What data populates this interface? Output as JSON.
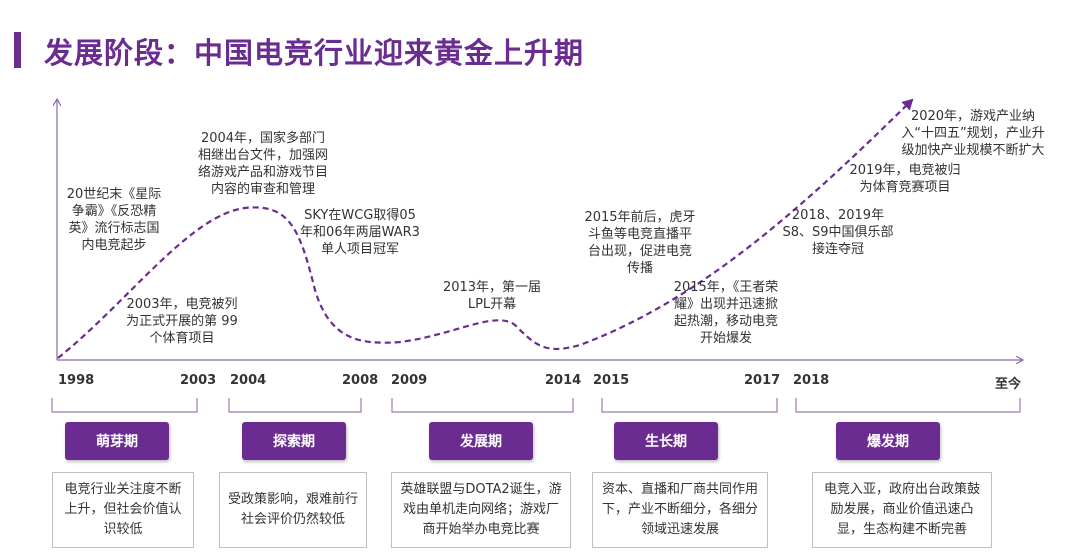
{
  "title": "发展阶段：中国电竞行业迎来黄金上升期",
  "colors": {
    "accent": "#6a2c91",
    "axis": "#8a6aa8",
    "bracket": "#9b7cb6"
  },
  "annotations": {
    "a1998": "20世纪末《星际争霸》《反恐精英》流行标志国内电竞起步",
    "a2003": "2003年，电竞被列为正式开展的第 99 个体育项目",
    "a2004": "2004年，国家多部门相继出台文件，加强网络游戏产品和游戏节目内容的审查和管理",
    "aSky": "SKY在WCG取得05年和06年两届WAR3单人项目冠军",
    "a2013": "2013年，第一届LPL开幕",
    "a2015a": "2015年前后，虎牙斗鱼等电竞直播平台出现，促进电竞传播",
    "a2015b": "2015年，《王者荣耀》出现并迅速掀起热潮，移动电竞开始爆发",
    "a2018": "2018、2019年S8、S9中国俱乐部接连夺冠",
    "a2019": "2019年，电竞被归为体育竞赛项目",
    "a2020": "2020年，游戏产业纳入“十四五”规划，产业升级加快产业规模不断扩大"
  },
  "years": [
    "1998",
    "2003",
    "2004",
    "2008",
    "2009",
    "2014",
    "2015",
    "2017",
    "2018",
    "至今"
  ],
  "phases": [
    {
      "name": "萌芽期",
      "desc": "电竞行业关注度不断上升，但社会价值认识较低"
    },
    {
      "name": "探索期",
      "desc": "受政策影响，艰难前行社会评价仍然较低"
    },
    {
      "name": "发展期",
      "desc": "英雄联盟与DOTA2诞生，游戏由单机走向网络；游戏厂商开始举办电竞比赛"
    },
    {
      "name": "生长期",
      "desc": "资本、直播和厂商共同作用下，产业不断细分，各细分领域迅速发展"
    },
    {
      "name": "爆发期",
      "desc": "电竞入亚，政府出台政策鼓励发展，商业价值迅速凸显，生态构建不断完善"
    }
  ]
}
